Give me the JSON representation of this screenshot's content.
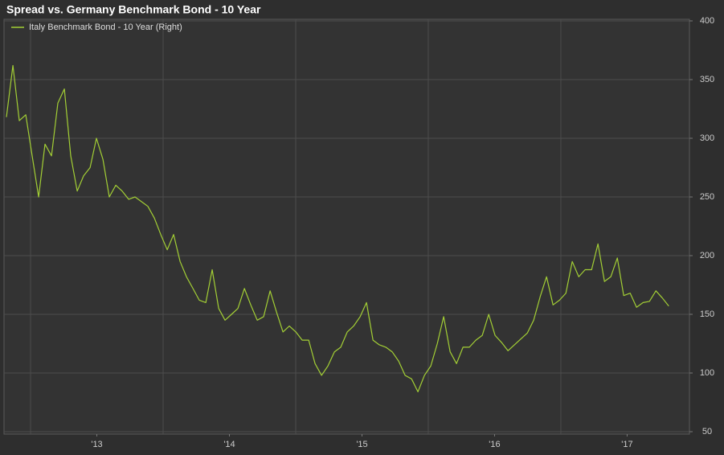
{
  "chart_data": {
    "type": "line",
    "title": "Spread vs. Germany Benchmark Bond - 10 Year",
    "legend": "top-left",
    "grid": true,
    "xlim": [
      2012.818,
      2017.97
    ],
    "xticks": [
      {
        "value": 2013.5,
        "label": "'13"
      },
      {
        "value": 2014.5,
        "label": "'14"
      },
      {
        "value": 2015.5,
        "label": "'15"
      },
      {
        "value": 2016.5,
        "label": "'16"
      },
      {
        "value": 2017.5,
        "label": "'17"
      }
    ],
    "xgrid": [
      2013,
      2014,
      2015,
      2016,
      2017
    ],
    "ylim": [
      50,
      400
    ],
    "yticks": [
      50,
      100,
      150,
      200,
      250,
      300,
      350,
      400
    ],
    "x": [
      2012.818,
      2012.867,
      2012.915,
      2012.964,
      2013.012,
      2013.061,
      2013.109,
      2013.158,
      2013.206,
      2013.255,
      2013.303,
      2013.352,
      2013.4,
      2013.449,
      2013.497,
      2013.546,
      2013.594,
      2013.643,
      2013.691,
      2013.74,
      2013.788,
      2013.837,
      2013.885,
      2013.934,
      2013.982,
      2014.031,
      2014.079,
      2014.128,
      2014.176,
      2014.225,
      2014.273,
      2014.322,
      2014.37,
      2014.419,
      2014.467,
      2014.516,
      2014.564,
      2014.613,
      2014.661,
      2014.71,
      2014.758,
      2014.807,
      2014.855,
      2014.904,
      2014.952,
      2015.001,
      2015.049,
      2015.098,
      2015.146,
      2015.195,
      2015.243,
      2015.292,
      2015.34,
      2015.389,
      2015.437,
      2015.486,
      2015.534,
      2015.583,
      2015.631,
      2015.68,
      2015.728,
      2015.777,
      2015.825,
      2015.874,
      2015.922,
      2015.971,
      2016.019,
      2016.068,
      2016.116,
      2016.165,
      2016.213,
      2016.262,
      2016.31,
      2016.359,
      2016.407,
      2016.456,
      2016.504,
      2016.553,
      2016.601,
      2016.65,
      2016.698,
      2016.747,
      2016.795,
      2016.844,
      2016.892,
      2016.941,
      2016.989,
      2017.038,
      2017.086,
      2017.135,
      2017.183,
      2017.232,
      2017.28,
      2017.329,
      2017.377,
      2017.426,
      2017.474,
      2017.523,
      2017.571,
      2017.62,
      2017.668,
      2017.717,
      2017.765,
      2017.814
    ],
    "series": [
      {
        "name": "Italy Benchmark Bond - 10 Year (Right)",
        "color": "#a3cf35",
        "values": [
          318,
          362,
          315,
          320,
          285,
          250,
          295,
          285,
          330,
          342,
          285,
          255,
          268,
          275,
          300,
          282,
          250,
          260,
          255,
          248,
          250,
          246,
          242,
          232,
          218,
          205,
          218,
          195,
          182,
          172,
          162,
          160,
          188,
          155,
          145,
          150,
          155,
          172,
          158,
          145,
          148,
          170,
          152,
          135,
          140,
          135,
          128,
          128,
          108,
          98,
          106,
          118,
          122,
          135,
          140,
          148,
          160,
          128,
          124,
          122,
          118,
          110,
          98,
          95,
          84,
          98,
          106,
          125,
          148,
          118,
          108,
          122,
          122,
          128,
          132,
          150,
          132,
          126,
          119,
          124,
          129,
          134,
          145,
          165,
          182,
          158,
          162,
          168,
          195,
          182,
          188,
          188,
          210,
          178,
          182,
          198,
          166,
          168,
          156,
          160,
          161,
          170,
          164,
          157
        ]
      }
    ]
  }
}
